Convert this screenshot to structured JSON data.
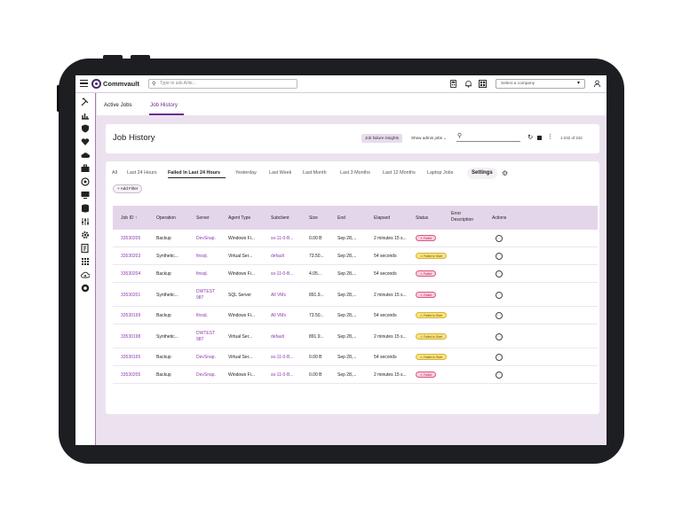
{
  "app": {
    "brand": "Commvault",
    "search_placeholder": "Type to ask Arlie...",
    "company_placeholder": "Select a company"
  },
  "tabs": [
    {
      "label": "Active Jobs",
      "active": false
    },
    {
      "label": "Job History",
      "active": true
    }
  ],
  "page": {
    "title": "Job History",
    "insights_label": "Job failure insights",
    "admin_jobs_label": "Show admin jobs",
    "count_label": "1-242 of 242"
  },
  "filters": [
    {
      "label": "All",
      "active": false
    },
    {
      "label": "Last 24 Hours",
      "active": false
    },
    {
      "label": "Failed In Last 24 Hours",
      "active": true
    },
    {
      "label": "Yesterday",
      "active": false
    },
    {
      "label": "Last Week",
      "active": false
    },
    {
      "label": "Last Month",
      "active": false
    },
    {
      "label": "Last 3 Months",
      "active": false
    },
    {
      "label": "Last 12 Months",
      "active": false
    },
    {
      "label": "Laptop Jobs",
      "active": false
    }
  ],
  "settings_label": "Settings",
  "add_filter_label": "Add Filter",
  "table": {
    "headers": {
      "job_id": "Job ID",
      "operation": "Operation",
      "server": "Server",
      "agent_type": "Agent Type",
      "subclient": "Subclient",
      "size": "Size",
      "end": "End",
      "elapsed": "Elapsed",
      "status": "Status",
      "error_1": "Error",
      "error_2": "Description",
      "actions": "Actions"
    },
    "rows": [
      {
        "job_id": "33530205",
        "operation": "Backup",
        "server": [
          "DevSnap."
        ],
        "agent_type": "Windows Fi...",
        "subclient": "ss-11-0-B...",
        "size": "0.00 B",
        "end": "Sep 28,...",
        "elapsed": "2 minutes 15 s...",
        "status": "Failed",
        "status_type": "failed"
      },
      {
        "job_id": "33530203",
        "operation": "Synthetic...",
        "server": [
          "finsql."
        ],
        "agent_type": "Virtual Ser...",
        "subclient": "default",
        "size": "73.50...",
        "end": "Sep 28,...",
        "elapsed": "54 seconds",
        "status": "Failed to Start",
        "status_type": "fts"
      },
      {
        "job_id": "33530204",
        "operation": "Backup",
        "server": [
          "finsql."
        ],
        "agent_type": "Windows Fi...",
        "subclient": "ss-11-0-B...",
        "size": "4.05...",
        "end": "Sep 28,...",
        "elapsed": "54 seconds",
        "status": "Failed",
        "status_type": "failed"
      },
      {
        "job_id": "33530201",
        "operation": "Synthetic...",
        "server": [
          "DWTEST",
          "987"
        ],
        "agent_type": "SQL Server",
        "subclient": "All VMs",
        "size": "891.9...",
        "end": "Sep 28,...",
        "elapsed": "2 minutes 15 s...",
        "status": "Failed",
        "status_type": "failed"
      },
      {
        "job_id": "33530199",
        "operation": "Backup",
        "server": [
          "finsql."
        ],
        "agent_type": "Windows Fi...",
        "subclient": "All VMs",
        "size": "73.50...",
        "end": "Sep 28,...",
        "elapsed": "54 seconds",
        "status": "Failed to Start",
        "status_type": "fts"
      },
      {
        "job_id": "33530198",
        "operation": "Synthetic...",
        "server": [
          "DWTEST",
          "987"
        ],
        "agent_type": "Virtual Ser...",
        "subclient": "default",
        "size": "891.9...",
        "end": "Sep 28,...",
        "elapsed": "2 minutes 15 s...",
        "status": "Failed to Start",
        "status_type": "fts"
      },
      {
        "job_id": "33530165",
        "operation": "Backup",
        "server": [
          "DevSnap."
        ],
        "agent_type": "Virtual Ser...",
        "subclient": "ss-11-0-B...",
        "size": "0.00 B",
        "end": "Sep 28,...",
        "elapsed": "54 seconds",
        "status": "Failed to Start",
        "status_type": "fts"
      },
      {
        "job_id": "33530205",
        "operation": "Backup",
        "server": [
          "DevSnap."
        ],
        "agent_type": "Windows Fi...",
        "subclient": "ss-11-0-B...",
        "size": "0.00 B",
        "end": "Sep 28,...",
        "elapsed": "2 minutes 15 s...",
        "status": "Failed",
        "status_type": "failed"
      }
    ]
  },
  "colors": {
    "accent": "#6b2c91",
    "link": "#8b3cb0",
    "failed_bg": "#fbd0dd",
    "fts_bg": "#fae37d"
  }
}
